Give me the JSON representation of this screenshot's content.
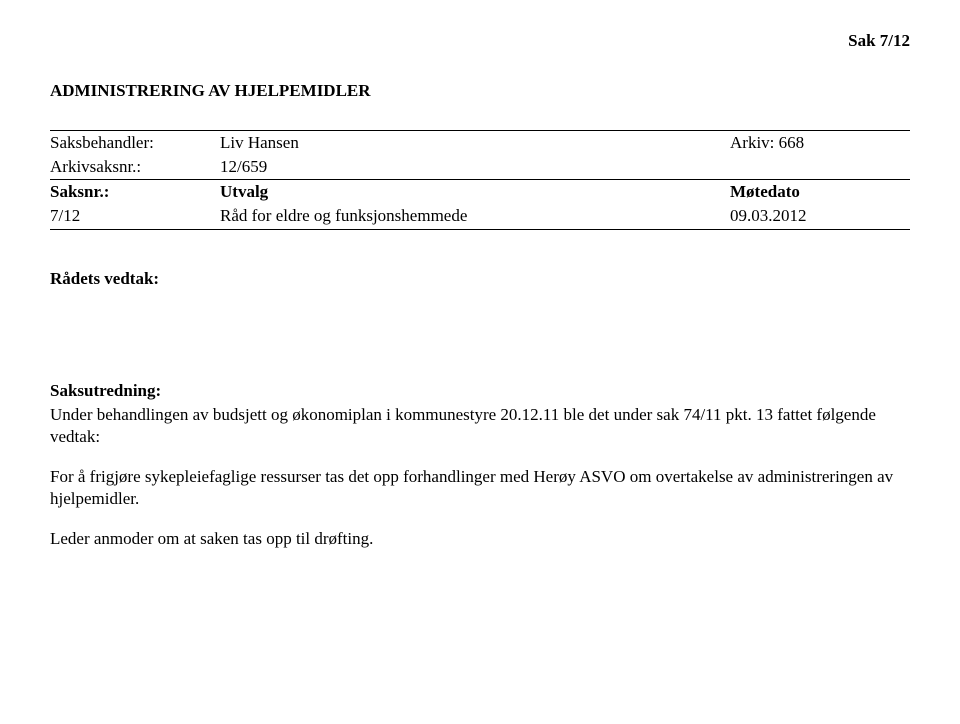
{
  "case_number": "Sak  7/12",
  "title": "ADMINISTRERING AV HJELPEMIDLER",
  "meta": {
    "row1": {
      "label": "Saksbehandler:",
      "value": "Liv Hansen",
      "right_label": "Arkiv: 668"
    },
    "row2": {
      "label": "Arkivsaksnr.:",
      "value": "12/659",
      "right_label": ""
    },
    "row3": {
      "label": "Saksnr.:",
      "value": "Utvalg",
      "right_label": "Møtedato"
    },
    "row4": {
      "label": "7/12",
      "value": "Råd for eldre og funksjonshemmede",
      "right_label": "09.03.2012"
    }
  },
  "decision_heading": "Rådets vedtak:",
  "assessment_heading": "Saksutredning:",
  "paragraph1": "Under behandlingen av budsjett og økonomiplan i kommunestyre 20.12.11 ble det under sak 74/11 pkt. 13 fattet følgende vedtak:",
  "paragraph2": "For å frigjøre sykepleiefaglige ressurser tas det opp forhandlinger med Herøy ASVO om overtakelse av administreringen av hjelpemidler.",
  "paragraph3": "Leder anmoder om at saken tas opp til drøfting."
}
